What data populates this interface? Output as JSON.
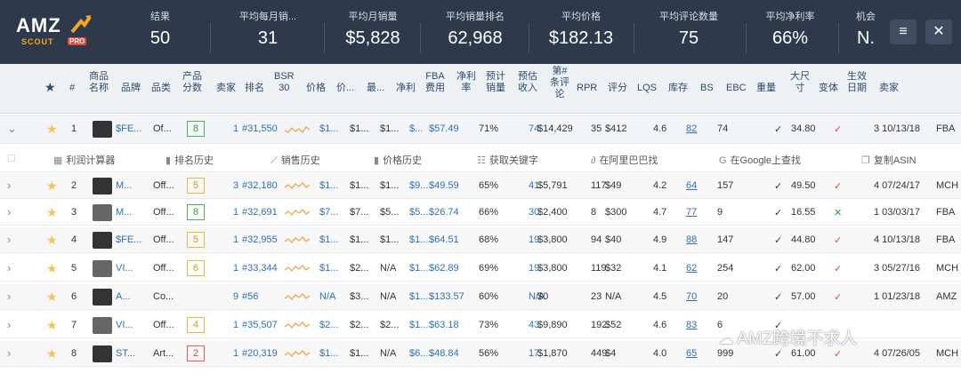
{
  "logo": {
    "amz": "AMZ",
    "scout": "SCOUT",
    "pro": "PRO"
  },
  "stats": [
    {
      "label": "结果",
      "value": "50"
    },
    {
      "label": "平均每月销...",
      "value": "31"
    },
    {
      "label": "平均月销量",
      "value": "$5,828"
    },
    {
      "label": "平均销量排名",
      "value": "62,968"
    },
    {
      "label": "平均价格",
      "value": "$182.13"
    },
    {
      "label": "平均评论数量",
      "value": "75"
    },
    {
      "label": "平均净利率",
      "value": "66%"
    },
    {
      "label": "机会",
      "value": "N."
    }
  ],
  "header_buttons": {
    "menu": "≡",
    "close": "✕"
  },
  "columns": [
    "#",
    "商品\n名称",
    "品牌",
    "品类",
    "产品\n分数",
    "卖家",
    "排名",
    "BSR\n30",
    "价格",
    "价...",
    "最...",
    "净利",
    "FBA\n费用",
    "净利\n率",
    "预计\n销量",
    "预估\n收入",
    "第#\n条评\n论",
    "RPR",
    "评分",
    "LQS",
    "库存",
    "BS",
    "EBC",
    "重量",
    "大尺\n寸",
    "变体",
    "生效\n日期",
    "卖家"
  ],
  "tools": [
    "利润计算器",
    "排名历史",
    "销售历史",
    "价格历史",
    "获取关键字",
    "在阿里巴巴找",
    "在Google上查找",
    "复制ASIN"
  ],
  "rows": [
    {
      "n": "1",
      "name": "$FE...",
      "cat": "Of...",
      "score": "8",
      "score_color": "green",
      "seller": "1",
      "rank": "#31,550",
      "price": "$1...",
      "p2": "$1...",
      "p3": "$1...",
      "net": "$...",
      "fba": "$57.49",
      "margin": "71%",
      "sales": "74",
      "rev": "$14,429",
      "reviews": "35",
      "rpr": "$412",
      "rating": "4.6",
      "lqs": "82",
      "stock": "74",
      "check": "✓",
      "size": "34.80",
      "variant": "✓",
      "eff": "3 10/13/18",
      "seller2": "FBA"
    },
    {
      "n": "2",
      "name": "M...",
      "cat": "Off...",
      "score": "5",
      "score_color": "yellow",
      "seller": "3",
      "rank": "#32,180",
      "price": "$1...",
      "p2": "$1...",
      "p3": "$1...",
      "net": "$9...",
      "fba": "$49.59",
      "margin": "65%",
      "sales": "41",
      "rev": "$5,791",
      "reviews": "117",
      "rpr": "$49",
      "rating": "4.2",
      "lqs": "64",
      "stock": "157",
      "check": "✓",
      "size": "49.50",
      "variant": "✓",
      "eff": "4 07/24/17",
      "seller2": "MCH"
    },
    {
      "n": "3",
      "name": "M...",
      "cat": "Off...",
      "score": "8",
      "score_color": "green",
      "seller": "1",
      "rank": "#32,691",
      "price": "$7...",
      "p2": "$7...",
      "p3": "$5...",
      "net": "$5...",
      "fba": "$26.74",
      "margin": "66%",
      "sales": "30",
      "rev": "$2,400",
      "reviews": "8",
      "rpr": "$300",
      "rating": "4.7",
      "lqs": "77",
      "stock": "9",
      "check": "✓",
      "size": "16.55",
      "variant": "✕",
      "eff": "1 03/03/17",
      "seller2": "FBA"
    },
    {
      "n": "4",
      "name": "$FE...",
      "cat": "Off...",
      "score": "5",
      "score_color": "yellow",
      "seller": "1",
      "rank": "#32,955",
      "price": "$1...",
      "p2": "$1...",
      "p3": "$1...",
      "net": "$1...",
      "fba": "$64.51",
      "margin": "68%",
      "sales": "19",
      "rev": "$3,800",
      "reviews": "94",
      "rpr": "$40",
      "rating": "4.9",
      "lqs": "88",
      "stock": "147",
      "check": "✓",
      "size": "44.80",
      "variant": "✓",
      "eff": "4 10/13/18",
      "seller2": "FBA"
    },
    {
      "n": "5",
      "name": "VI...",
      "cat": "Off...",
      "score": "6",
      "score_color": "yellow",
      "seller": "1",
      "rank": "#33,344",
      "price": "$1...",
      "p2": "$2...",
      "p3": "N/A",
      "net": "$1...",
      "fba": "$62.89",
      "margin": "69%",
      "sales": "19",
      "rev": "$3,800",
      "reviews": "119",
      "rpr": "$32",
      "rating": "4.1",
      "lqs": "62",
      "stock": "254",
      "check": "✓",
      "size": "62.00",
      "variant": "✓",
      "eff": "3 05/27/16",
      "seller2": "MCH"
    },
    {
      "n": "6",
      "name": "A...",
      "cat": "Co...",
      "score": "",
      "score_color": "",
      "seller": "9",
      "rank": "#56",
      "price": "N/A",
      "p2": "$3...",
      "p3": "N/A",
      "net": "$1...",
      "fba": "$133.57",
      "margin": "60%",
      "sales": "N/A",
      "rev": "$0",
      "reviews": "23",
      "rpr": "N/A",
      "rating": "4.5",
      "lqs": "70",
      "stock": "20",
      "check": "✓",
      "size": "57.00",
      "variant": "✓",
      "eff": "1 01/23/18",
      "seller2": "AMZ"
    },
    {
      "n": "7",
      "name": "VI...",
      "cat": "Off...",
      "score": "4",
      "score_color": "yellow",
      "seller": "1",
      "rank": "#35,507",
      "price": "$2...",
      "p2": "$2...",
      "p3": "$2...",
      "net": "$1...",
      "fba": "$63.18",
      "margin": "73%",
      "sales": "43",
      "rev": "$9,890",
      "reviews": "192",
      "rpr": "$52",
      "rating": "4.6",
      "lqs": "83",
      "stock": "6",
      "check": "✓",
      "size": "",
      "variant": "",
      "eff": "",
      "seller2": ""
    },
    {
      "n": "8",
      "name": "ST...",
      "cat": "Art...",
      "score": "2",
      "score_color": "red",
      "seller": "1",
      "rank": "#20,319",
      "price": "$1...",
      "p2": "$1...",
      "p3": "N/A",
      "net": "$6...",
      "fba": "$48.84",
      "margin": "56%",
      "sales": "17",
      "rev": "$1,870",
      "reviews": "449",
      "rpr": "$4",
      "rating": "4.0",
      "lqs": "65",
      "stock": "999",
      "check": "✓",
      "size": "61.00",
      "variant": "✓",
      "eff": "4 07/26/05",
      "seller2": "MCH"
    }
  ],
  "watermark": "AMZ跨境不求人"
}
